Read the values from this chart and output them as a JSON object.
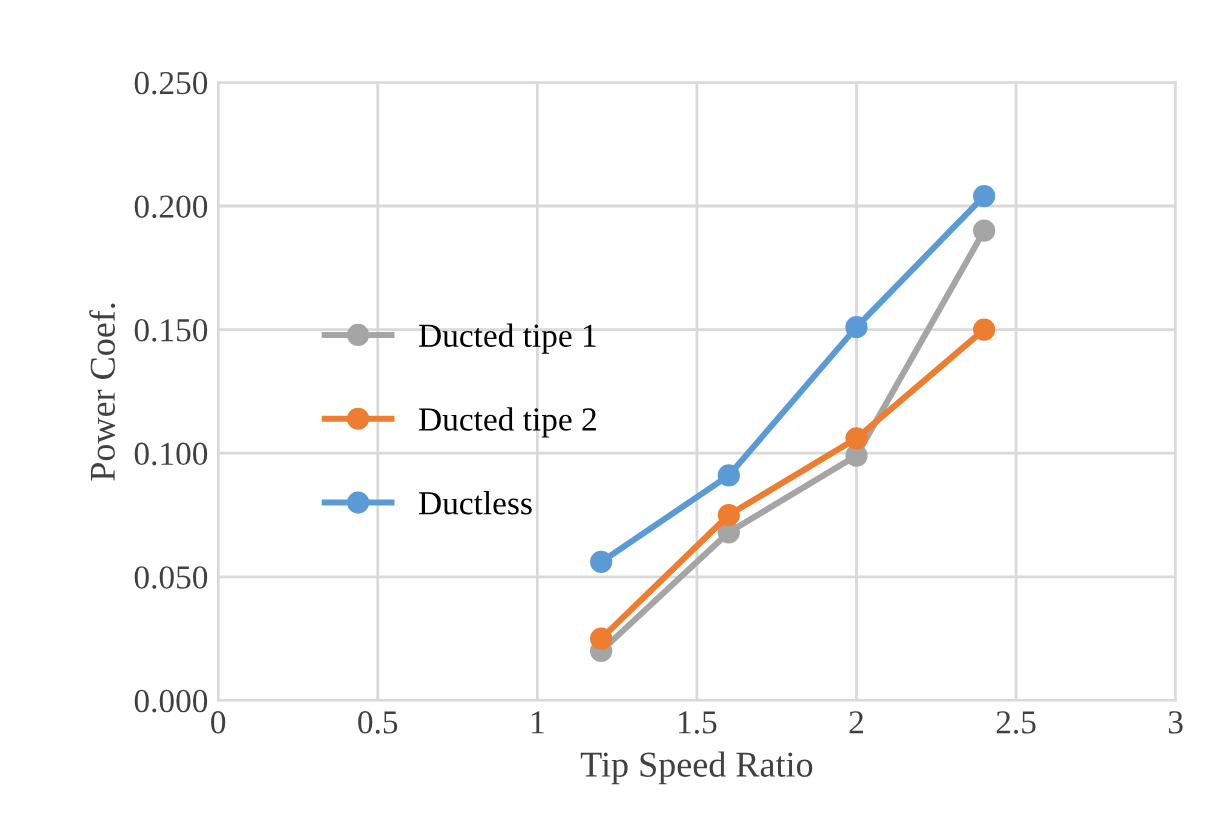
{
  "chart_data": {
    "type": "line",
    "xlabel": "Tip Speed Ratio",
    "ylabel": "Power Coef.",
    "x": [
      1.2,
      1.6,
      2,
      2.4
    ],
    "series": [
      {
        "name": "Ducted tipe 1",
        "color": "#a5a5a5",
        "values": [
          0.02,
          0.068,
          0.099,
          0.19
        ]
      },
      {
        "name": "Ducted tipe 2",
        "color": "#ed7d31",
        "values": [
          0.025,
          0.075,
          0.106,
          0.15
        ]
      },
      {
        "name": "Ductless",
        "color": "#5b9bd5",
        "values": [
          0.056,
          0.091,
          0.151,
          0.204
        ]
      }
    ],
    "xlim": [
      0,
      3
    ],
    "xticks": [
      0,
      0.5,
      1,
      1.5,
      2,
      2.5,
      3
    ],
    "ylim": [
      0,
      0.25
    ],
    "yticks": [
      {
        "value": 0,
        "label": "0.000"
      },
      {
        "value": 0.05,
        "label": "0.050"
      },
      {
        "value": 0.1,
        "label": "0.100"
      },
      {
        "value": 0.15,
        "label": "0.150"
      },
      {
        "value": 0.2,
        "label": "0.200"
      },
      {
        "value": 0.25,
        "label": "0.250"
      }
    ],
    "grid": true,
    "legend": "center left",
    "marker": "circle",
    "line_style": "solid"
  }
}
